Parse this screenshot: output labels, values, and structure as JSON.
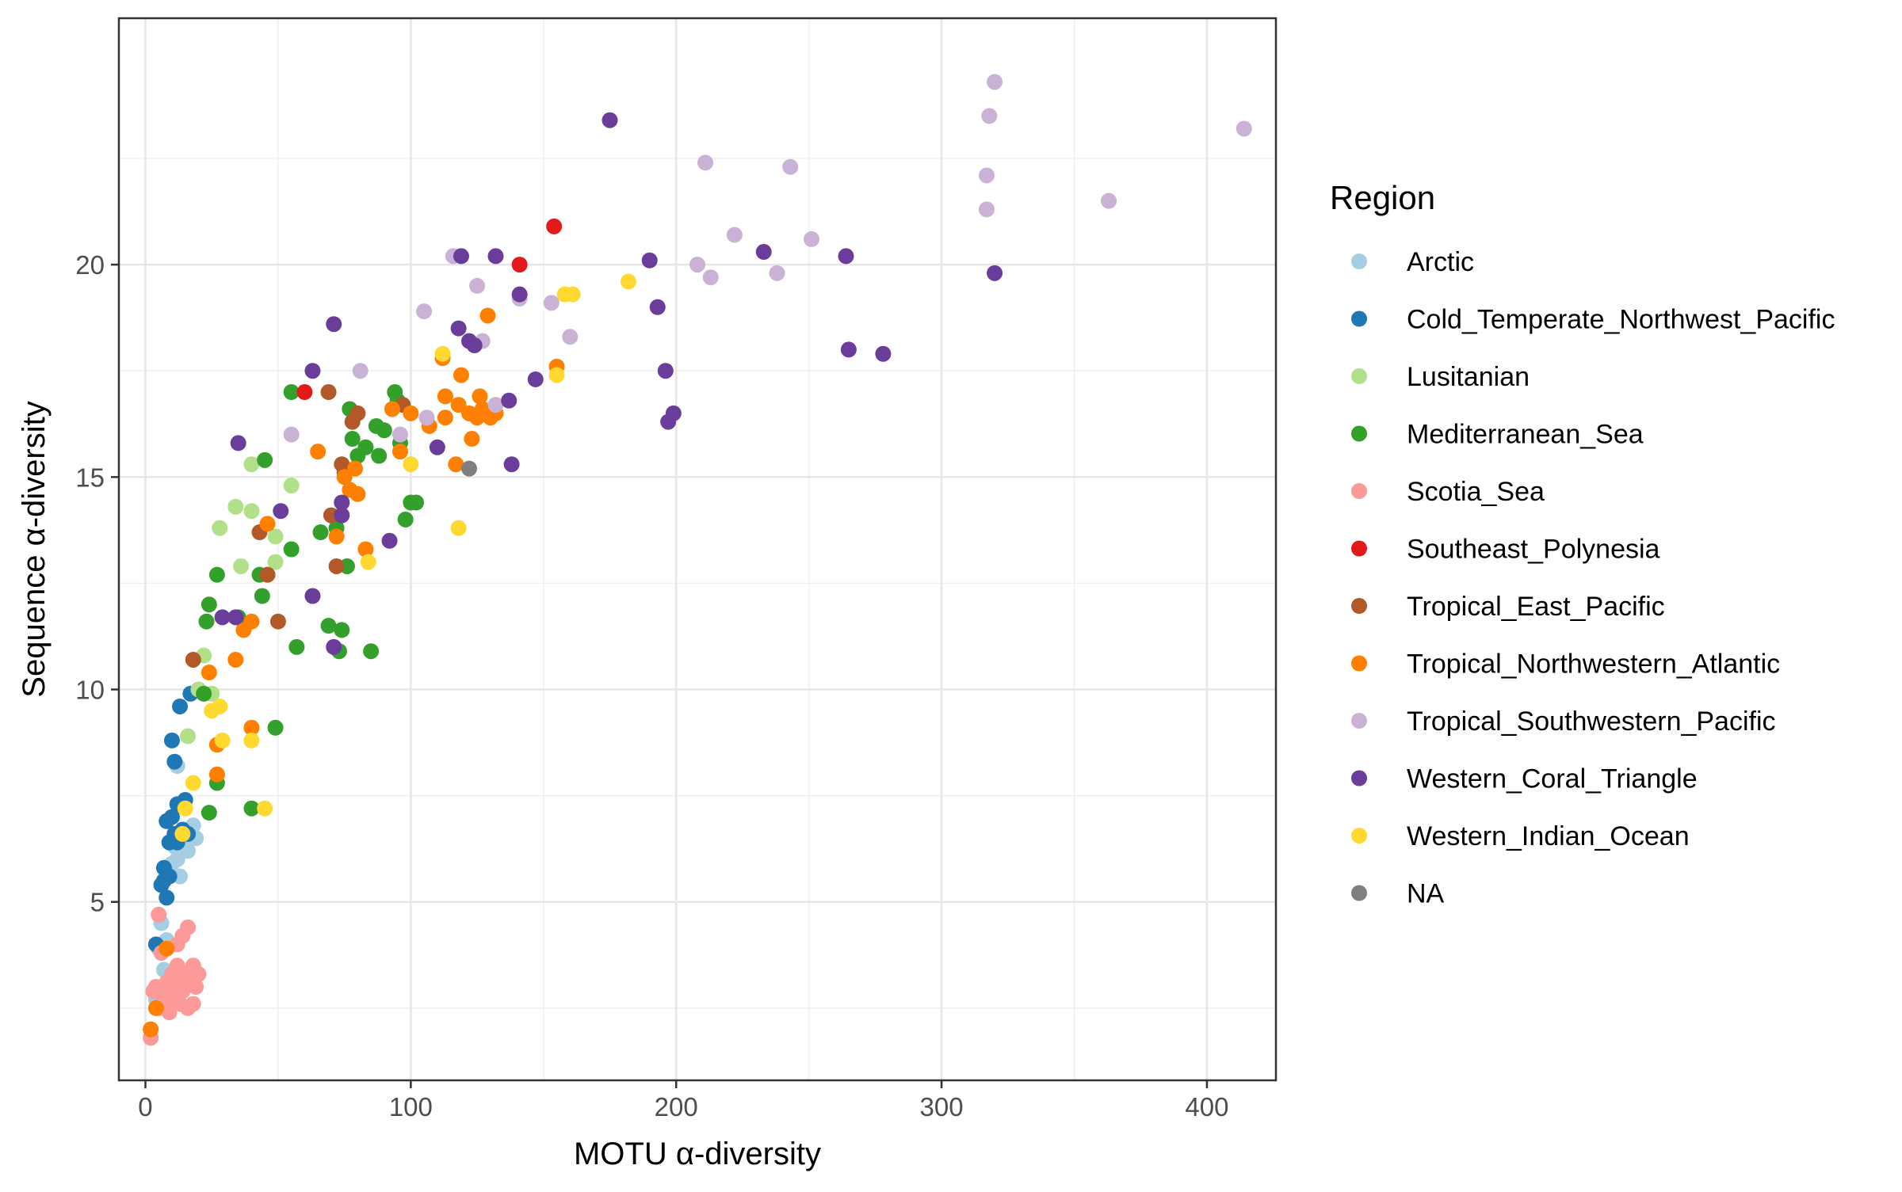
{
  "chart_data": {
    "type": "scatter",
    "xlabel": "MOTU α-diversity",
    "ylabel": "Sequence α-diversity",
    "xlim": [
      -10,
      426
    ],
    "ylim": [
      0.8,
      25.8
    ],
    "xticks": [
      0,
      100,
      200,
      300,
      400
    ],
    "yticks": [
      5,
      10,
      15,
      20
    ],
    "grid": true,
    "legend_title": "Region",
    "legend_position": "right",
    "series": [
      {
        "name": "Arctic",
        "color": "#A6CEE3",
        "points": [
          [
            4,
            2.7
          ],
          [
            5,
            3.9
          ],
          [
            6,
            4.5
          ],
          [
            7,
            3.4
          ],
          [
            8,
            4.1
          ],
          [
            10,
            5.9
          ],
          [
            11,
            6.3
          ],
          [
            12,
            6.0
          ],
          [
            13,
            5.6
          ],
          [
            15,
            6.4
          ],
          [
            16,
            6.2
          ],
          [
            18,
            6.8
          ],
          [
            19,
            6.5
          ],
          [
            9,
            4.0
          ],
          [
            12,
            8.2
          ]
        ]
      },
      {
        "name": "Cold_Temperate_Northwest_Pacific",
        "color": "#1F78B4",
        "points": [
          [
            4,
            4.0
          ],
          [
            6,
            5.4
          ],
          [
            7,
            5.8
          ],
          [
            8,
            6.9
          ],
          [
            9,
            6.4
          ],
          [
            10,
            7.0
          ],
          [
            11,
            6.6
          ],
          [
            12,
            7.3
          ],
          [
            13,
            9.6
          ],
          [
            15,
            7.4
          ],
          [
            16,
            6.6
          ],
          [
            17,
            9.9
          ],
          [
            10,
            8.8
          ],
          [
            11,
            8.3
          ],
          [
            8,
            5.1
          ],
          [
            9,
            5.6
          ],
          [
            12,
            6.4
          ],
          [
            14,
            6.7
          ],
          [
            7,
            5.5
          ]
        ]
      },
      {
        "name": "Lusitanian",
        "color": "#B2DF8A",
        "points": [
          [
            16,
            8.9
          ],
          [
            20,
            10.0
          ],
          [
            22,
            10.8
          ],
          [
            25,
            9.9
          ],
          [
            28,
            13.8
          ],
          [
            34,
            14.3
          ],
          [
            36,
            12.9
          ],
          [
            40,
            15.3
          ],
          [
            40,
            14.2
          ],
          [
            46,
            12.7
          ],
          [
            49,
            13.6
          ],
          [
            49,
            13.0
          ],
          [
            55,
            14.8
          ]
        ]
      },
      {
        "name": "Mediterranean_Sea",
        "color": "#33A02C",
        "points": [
          [
            22,
            9.9
          ],
          [
            23,
            11.6
          ],
          [
            24,
            12.0
          ],
          [
            24,
            7.1
          ],
          [
            27,
            12.7
          ],
          [
            27,
            7.8
          ],
          [
            35,
            11.7
          ],
          [
            40,
            7.2
          ],
          [
            43,
            12.7
          ],
          [
            44,
            12.2
          ],
          [
            45,
            15.4
          ],
          [
            49,
            9.1
          ],
          [
            55,
            13.3
          ],
          [
            55,
            17.0
          ],
          [
            57,
            11.0
          ],
          [
            66,
            13.7
          ],
          [
            69,
            11.5
          ],
          [
            72,
            13.8
          ],
          [
            73,
            10.9
          ],
          [
            74,
            11.4
          ],
          [
            75,
            15.1
          ],
          [
            76,
            12.9
          ],
          [
            77,
            16.6
          ],
          [
            78,
            15.9
          ],
          [
            80,
            15.5
          ],
          [
            83,
            15.7
          ],
          [
            85,
            10.9
          ],
          [
            87,
            16.2
          ],
          [
            88,
            15.5
          ],
          [
            90,
            16.1
          ],
          [
            94,
            17.0
          ],
          [
            95,
            16.8
          ],
          [
            96,
            15.8
          ],
          [
            98,
            14.0
          ],
          [
            100,
            14.4
          ],
          [
            102,
            14.4
          ]
        ]
      },
      {
        "name": "Scotia_Sea",
        "color": "#FB9A99",
        "points": [
          [
            2,
            1.8
          ],
          [
            3,
            2.9
          ],
          [
            4,
            3.0
          ],
          [
            5,
            2.5
          ],
          [
            5,
            4.7
          ],
          [
            6,
            3.8
          ],
          [
            7,
            2.7
          ],
          [
            8,
            3.1
          ],
          [
            9,
            2.4
          ],
          [
            10,
            3.3
          ],
          [
            11,
            2.7
          ],
          [
            12,
            3.5
          ],
          [
            12,
            4.0
          ],
          [
            13,
            2.6
          ],
          [
            14,
            2.9
          ],
          [
            14,
            4.2
          ],
          [
            15,
            3.3
          ],
          [
            16,
            2.5
          ],
          [
            16,
            4.4
          ],
          [
            17,
            3.2
          ],
          [
            18,
            3.5
          ],
          [
            18,
            2.6
          ],
          [
            19,
            3.0
          ],
          [
            20,
            3.3
          ],
          [
            13,
            3.1
          ],
          [
            9,
            2.9
          ]
        ]
      },
      {
        "name": "Southeast_Polynesia",
        "color": "#E31A1C",
        "points": [
          [
            60,
            17.0
          ],
          [
            141,
            20.0
          ],
          [
            154,
            20.9
          ]
        ]
      },
      {
        "name": "Tropical_East_Pacific",
        "color": "#B15928",
        "points": [
          [
            18,
            10.7
          ],
          [
            43,
            13.7
          ],
          [
            46,
            12.7
          ],
          [
            50,
            11.6
          ],
          [
            69,
            17.0
          ],
          [
            70,
            14.1
          ],
          [
            72,
            12.9
          ],
          [
            74,
            15.3
          ],
          [
            78,
            16.3
          ],
          [
            80,
            16.5
          ],
          [
            97,
            16.7
          ]
        ]
      },
      {
        "name": "Tropical_Northwestern_Atlantic",
        "color": "#FF7F00",
        "points": [
          [
            2,
            2.0
          ],
          [
            4,
            2.5
          ],
          [
            8,
            3.9
          ],
          [
            24,
            10.4
          ],
          [
            27,
            8.7
          ],
          [
            27,
            8.0
          ],
          [
            34,
            10.7
          ],
          [
            37,
            11.4
          ],
          [
            40,
            11.6
          ],
          [
            40,
            9.1
          ],
          [
            46,
            13.9
          ],
          [
            65,
            15.6
          ],
          [
            72,
            13.6
          ],
          [
            75,
            15.0
          ],
          [
            77,
            14.7
          ],
          [
            79,
            15.2
          ],
          [
            80,
            14.6
          ],
          [
            83,
            13.3
          ],
          [
            93,
            16.6
          ],
          [
            96,
            15.6
          ],
          [
            100,
            16.5
          ],
          [
            107,
            16.2
          ],
          [
            112,
            17.8
          ],
          [
            113,
            16.4
          ],
          [
            113,
            16.9
          ],
          [
            117,
            15.3
          ],
          [
            118,
            16.7
          ],
          [
            119,
            17.4
          ],
          [
            122,
            16.5
          ],
          [
            123,
            15.9
          ],
          [
            125,
            16.4
          ],
          [
            126,
            16.9
          ],
          [
            127,
            16.6
          ],
          [
            129,
            18.8
          ],
          [
            130,
            16.4
          ],
          [
            132,
            16.5
          ],
          [
            155,
            17.6
          ]
        ]
      },
      {
        "name": "Tropical_Southwestern_Pacific",
        "color": "#CAB2D6",
        "points": [
          [
            55,
            16.0
          ],
          [
            81,
            17.5
          ],
          [
            96,
            16.0
          ],
          [
            105,
            18.9
          ],
          [
            106,
            16.4
          ],
          [
            116,
            20.2
          ],
          [
            125,
            19.5
          ],
          [
            127,
            18.2
          ],
          [
            132,
            16.7
          ],
          [
            141,
            19.2
          ],
          [
            153,
            19.1
          ],
          [
            160,
            18.3
          ],
          [
            208,
            20.0
          ],
          [
            211,
            22.4
          ],
          [
            213,
            19.7
          ],
          [
            222,
            20.7
          ],
          [
            238,
            19.8
          ],
          [
            243,
            22.3
          ],
          [
            251,
            20.6
          ],
          [
            317,
            22.1
          ],
          [
            317,
            21.3
          ],
          [
            318,
            23.5
          ],
          [
            320,
            24.3
          ],
          [
            363,
            21.5
          ],
          [
            414,
            23.2
          ]
        ]
      },
      {
        "name": "Western_Coral_Triangle",
        "color": "#6A3D9A",
        "points": [
          [
            29,
            11.7
          ],
          [
            34,
            11.7
          ],
          [
            35,
            15.8
          ],
          [
            51,
            14.2
          ],
          [
            63,
            12.2
          ],
          [
            63,
            17.5
          ],
          [
            71,
            11.0
          ],
          [
            71,
            18.6
          ],
          [
            74,
            14.4
          ],
          [
            74,
            14.1
          ],
          [
            92,
            13.5
          ],
          [
            110,
            15.7
          ],
          [
            118,
            18.5
          ],
          [
            119,
            20.2
          ],
          [
            122,
            18.2
          ],
          [
            124,
            18.1
          ],
          [
            132,
            20.2
          ],
          [
            137,
            16.8
          ],
          [
            138,
            15.3
          ],
          [
            141,
            19.3
          ],
          [
            147,
            17.3
          ],
          [
            175,
            23.4
          ],
          [
            190,
            20.1
          ],
          [
            193,
            19.0
          ],
          [
            196,
            17.5
          ],
          [
            197,
            16.3
          ],
          [
            199,
            16.5
          ],
          [
            233,
            20.3
          ],
          [
            264,
            20.2
          ],
          [
            265,
            18.0
          ],
          [
            278,
            17.9
          ],
          [
            320,
            19.8
          ]
        ]
      },
      {
        "name": "Western_Indian_Ocean",
        "color": "#FFD92F",
        "points": [
          [
            14,
            6.6
          ],
          [
            15,
            7.2
          ],
          [
            18,
            7.8
          ],
          [
            25,
            9.5
          ],
          [
            28,
            9.6
          ],
          [
            29,
            8.8
          ],
          [
            40,
            8.8
          ],
          [
            45,
            7.2
          ],
          [
            84,
            13.0
          ],
          [
            100,
            15.3
          ],
          [
            112,
            17.9
          ],
          [
            118,
            13.8
          ],
          [
            155,
            17.4
          ],
          [
            158,
            19.3
          ],
          [
            161,
            19.3
          ],
          [
            182,
            19.6
          ]
        ]
      },
      {
        "name": "NA",
        "color": "#7F7F7F",
        "points": [
          [
            122,
            15.2
          ]
        ]
      }
    ]
  }
}
